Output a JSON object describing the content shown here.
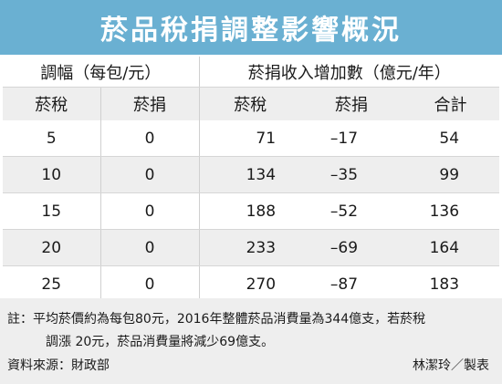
{
  "title": "菸品稅捐調整影響概況",
  "header": {
    "group_left": "調幅（每包/元）",
    "group_right": "菸捐收入增加數（億元/年）",
    "columns": [
      "菸稅",
      "菸捐",
      "菸稅",
      "菸捐",
      "合計"
    ]
  },
  "rows": [
    [
      "5",
      "0",
      "71",
      "–17",
      "54"
    ],
    [
      "10",
      "0",
      "134",
      "–35",
      "99"
    ],
    [
      "15",
      "0",
      "188",
      "–52",
      "136"
    ],
    [
      "20",
      "0",
      "233",
      "–69",
      "164"
    ],
    [
      "25",
      "0",
      "270",
      "–87",
      "183"
    ]
  ],
  "footer": {
    "note_line1": "註：平均菸價約為每包80元，2016年整體菸品消費量為344億支，若菸稅",
    "note_line2": "調漲 20元，菸品消費量將減少69億支。",
    "source": "資料來源：財政部",
    "credit": "林潔玲／製表"
  },
  "colors": {
    "title_bg": "#6ab0d2",
    "row_alt_bg": "#eeeeee"
  }
}
